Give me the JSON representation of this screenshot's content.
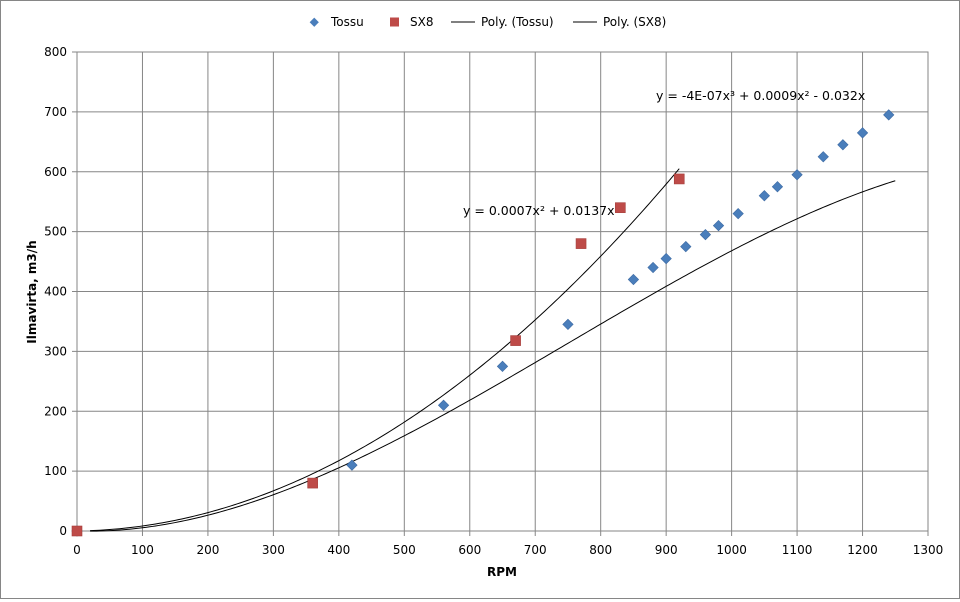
{
  "chart_data": {
    "type": "scatter",
    "xlabel": "RPM",
    "ylabel": "Ilmavirta, m3/h",
    "xlim": [
      0,
      1300
    ],
    "ylim": [
      0,
      800
    ],
    "xticks": [
      0,
      100,
      200,
      300,
      400,
      500,
      600,
      700,
      800,
      900,
      1000,
      1100,
      1200,
      1300
    ],
    "yticks": [
      0,
      100,
      200,
      300,
      400,
      500,
      600,
      700,
      800
    ],
    "grid": true,
    "legend_position": "top",
    "series": [
      {
        "name": "Tossu",
        "marker": "diamond",
        "color": "#4a7ebb",
        "x": [
          0,
          420,
          560,
          650,
          750,
          850,
          880,
          900,
          930,
          960,
          980,
          1010,
          1050,
          1070,
          1100,
          1140,
          1170,
          1200,
          1240
        ],
        "y": [
          0,
          110,
          210,
          275,
          345,
          420,
          440,
          455,
          475,
          495,
          510,
          530,
          560,
          575,
          595,
          625,
          645,
          665,
          695
        ]
      },
      {
        "name": "SX8",
        "marker": "square",
        "color": "#be4b48",
        "x": [
          0,
          360,
          670,
          770,
          830,
          920
        ],
        "y": [
          0,
          80,
          318,
          480,
          540,
          588
        ]
      }
    ],
    "trendlines": [
      {
        "name": "Poly. (Tossu)",
        "color": "#000000",
        "coefficients": {
          "a3": -4e-07,
          "a2": 0.0009,
          "a1": -0.032,
          "a0": 0
        },
        "x_range": [
          20,
          1250
        ],
        "equation": "y = -4E-07x³ + 0.0009x² - 0.032x"
      },
      {
        "name": "Poly. (SX8)",
        "color": "#000000",
        "coefficients": {
          "a3": 0,
          "a2": 0.0007,
          "a1": 0.0137,
          "a0": 0
        },
        "x_range": [
          20,
          920
        ],
        "equation": "y = 0.0007x² + 0.0137x"
      }
    ]
  }
}
